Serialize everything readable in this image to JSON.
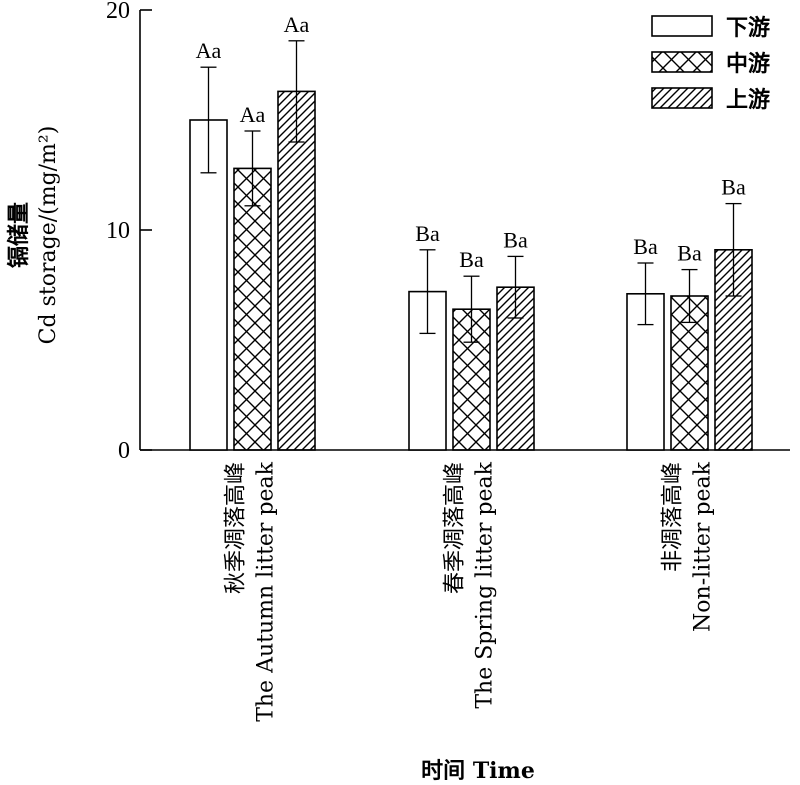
{
  "chart_data": {
    "type": "bar",
    "title": "",
    "xlabel": "时间 Time",
    "ylabel_cn": "镉储量",
    "ylabel": "Cd storage/(mg/m²)",
    "ylim": [
      0,
      20
    ],
    "yticks": [
      "0",
      "10",
      "20"
    ],
    "categories": [
      {
        "cn": "秋季凋落高峰",
        "en": "The Autumn litter peak"
      },
      {
        "cn": "春季凋落高峰",
        "en": "The Spring litter peak"
      },
      {
        "cn": "非凋落高峰",
        "en": "Non-litter peak"
      }
    ],
    "series": [
      {
        "name": "下游",
        "pattern": "none",
        "values": [
          15.0,
          7.2,
          7.1
        ],
        "errors": [
          2.4,
          1.9,
          1.4
        ],
        "labels": [
          "Aa",
          "Ba",
          "Ba"
        ]
      },
      {
        "name": "中游",
        "pattern": "crosshatch",
        "values": [
          12.8,
          6.4,
          7.0
        ],
        "errors": [
          1.7,
          1.5,
          1.2
        ],
        "labels": [
          "Aa",
          "Ba",
          "Ba"
        ]
      },
      {
        "name": "上游",
        "pattern": "diagonal",
        "values": [
          16.3,
          7.4,
          9.1
        ],
        "errors": [
          2.3,
          1.4,
          2.1
        ],
        "labels": [
          "Aa",
          "Ba",
          "Ba"
        ]
      }
    ],
    "legend_position": "top-right",
    "grid": false
  }
}
